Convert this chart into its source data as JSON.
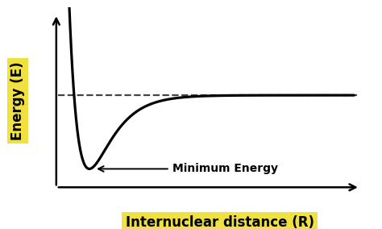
{
  "xlabel": "Internuclear distance (R)",
  "ylabel": "Energy (E)",
  "background_color": "#ffffff",
  "xlabel_bg": "#f0e040",
  "ylabel_bg": "#f0e040",
  "curve_color": "#000000",
  "dashed_color": "#444444",
  "axis_color": "#000000",
  "label_fontsize": 12,
  "annotation_fontsize": 10,
  "annotation_text": "Minimum Energy",
  "morse_De": 1.0,
  "morse_re": 2.0,
  "morse_a": 1.5,
  "r_min": 1.2,
  "r_max": 10.0,
  "ylim_bottom": -1.35,
  "ylim_top": 1.2,
  "xlim_left": 0.8,
  "xlim_right": 10.5,
  "dashed_y": 0.0,
  "xaxis_y": -1.25,
  "yaxis_x": 1.0
}
